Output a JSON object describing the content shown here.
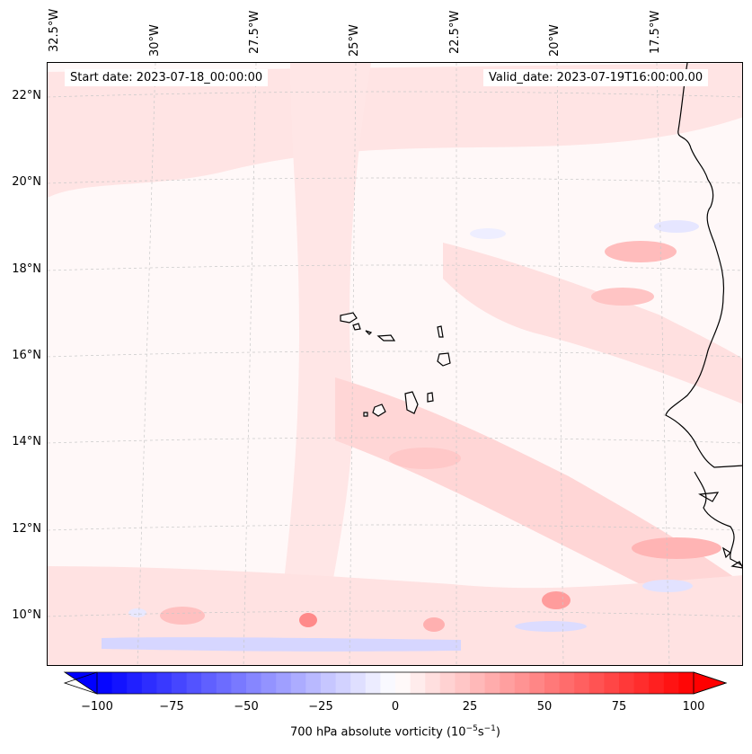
{
  "map": {
    "start_date_text": "Start date: 2023-07-18_00:00:00",
    "valid_date_text": "Valid_date: 2023-07-19T16:00:00.00",
    "lat_labels": [
      "22°N",
      "20°N",
      "18°N",
      "16°N",
      "14°N",
      "12°N",
      "10°N"
    ],
    "lon_labels": [
      "32.5°W",
      "30°W",
      "27.5°W",
      "25°W",
      "22.5°W",
      "20°W",
      "17.5°W"
    ],
    "features": [
      "Cape Verde islands",
      "West African coastline",
      "vorticity filled contours",
      "lat/lon gridlines"
    ]
  },
  "colorbar": {
    "label_prefix": "700 hPa absolute vorticity (10",
    "label_exp1": "−5",
    "label_mid": "s",
    "label_exp2": "−1",
    "label_suffix": ")",
    "ticks": [
      "−100",
      "−75",
      "−50",
      "−25",
      "0",
      "25",
      "50",
      "75",
      "100"
    ],
    "min": -100,
    "max": 100,
    "levels": 40,
    "color_low": "#0000ff",
    "color_mid": "#ffffff",
    "color_high": "#ff0000"
  }
}
